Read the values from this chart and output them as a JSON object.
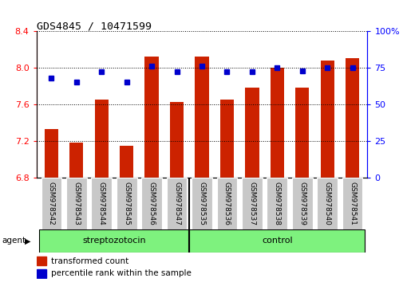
{
  "title": "GDS4845 / 10471599",
  "categories": [
    "GSM978542",
    "GSM978543",
    "GSM978544",
    "GSM978545",
    "GSM978546",
    "GSM978547",
    "GSM978535",
    "GSM978536",
    "GSM978537",
    "GSM978538",
    "GSM978539",
    "GSM978540",
    "GSM978541"
  ],
  "bar_values": [
    7.33,
    7.18,
    7.65,
    7.15,
    8.12,
    7.63,
    8.12,
    7.65,
    7.78,
    8.0,
    7.78,
    8.08,
    8.1
  ],
  "percentile_values": [
    68,
    65,
    72,
    65,
    76,
    72,
    76,
    72,
    72,
    75,
    73,
    75,
    75
  ],
  "bar_color": "#cc2200",
  "dot_color": "#0000cc",
  "ylim_left": [
    6.8,
    8.4
  ],
  "ylim_right": [
    0,
    100
  ],
  "yticks_left": [
    6.8,
    7.2,
    7.6,
    8.0,
    8.4
  ],
  "yticks_right": [
    0,
    25,
    50,
    75,
    100
  ],
  "group1_label": "streptozotocin",
  "group2_label": "control",
  "group1_indices": [
    0,
    1,
    2,
    3,
    4,
    5
  ],
  "group2_indices": [
    6,
    7,
    8,
    9,
    10,
    11,
    12
  ],
  "agent_label": "agent",
  "legend1": "transformed count",
  "legend2": "percentile rank within the sample",
  "group_color": "#7ef27e",
  "bar_bottom": 6.8,
  "tick_label_bg": "#c8c8c8"
}
